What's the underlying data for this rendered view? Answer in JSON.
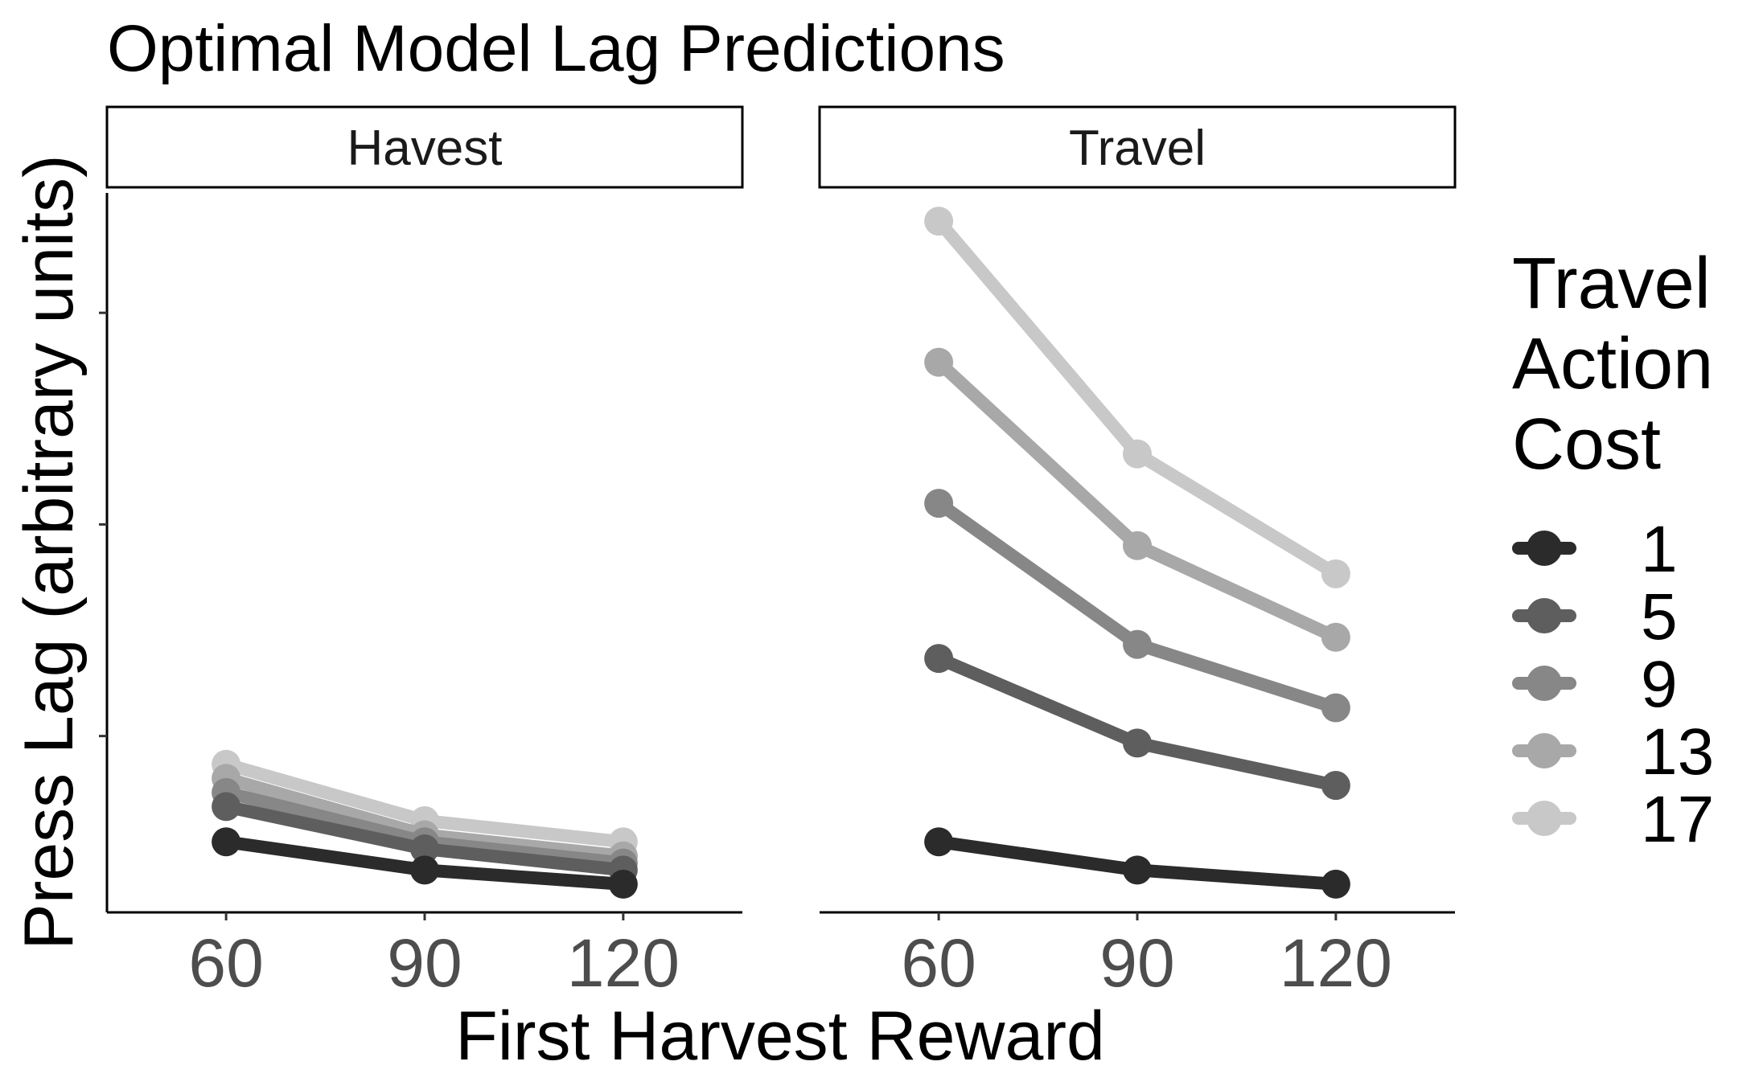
{
  "chart_data": {
    "type": "line",
    "title": "Optimal Model Lag Predictions",
    "xlabel": "First Harvest Reward",
    "ylabel": "Press Lag (arbitrary units)",
    "x": [
      60,
      90,
      120
    ],
    "x_tick_labels": [
      "60",
      "90",
      "120"
    ],
    "xlim": [
      42,
      138
    ],
    "ylim": [
      0,
      1.02
    ],
    "y_ticks": [
      0.25,
      0.55,
      0.85
    ],
    "grid": false,
    "legend": {
      "title_lines": [
        "Travel",
        "Action",
        "Cost"
      ],
      "placement": "right"
    },
    "series_colors": [
      "#2b2b2b",
      "#5e5e5e",
      "#878787",
      "#a8a8a8",
      "#c8c8c8"
    ],
    "panels": [
      {
        "name": "Havest",
        "series": [
          {
            "name": "1",
            "values": [
              0.1,
              0.06,
              0.04
            ]
          },
          {
            "name": "5",
            "values": [
              0.15,
              0.09,
              0.06
            ]
          },
          {
            "name": "9",
            "values": [
              0.17,
              0.1,
              0.07
            ]
          },
          {
            "name": "13",
            "values": [
              0.19,
              0.11,
              0.08
            ]
          },
          {
            "name": "17",
            "values": [
              0.21,
              0.13,
              0.1
            ]
          }
        ]
      },
      {
        "name": "Travel",
        "series": [
          {
            "name": "1",
            "values": [
              0.1,
              0.06,
              0.04
            ]
          },
          {
            "name": "5",
            "values": [
              0.36,
              0.24,
              0.18
            ]
          },
          {
            "name": "9",
            "values": [
              0.58,
              0.38,
              0.29
            ]
          },
          {
            "name": "13",
            "values": [
              0.78,
              0.52,
              0.39
            ]
          },
          {
            "name": "17",
            "values": [
              0.98,
              0.65,
              0.48
            ]
          }
        ]
      }
    ]
  }
}
